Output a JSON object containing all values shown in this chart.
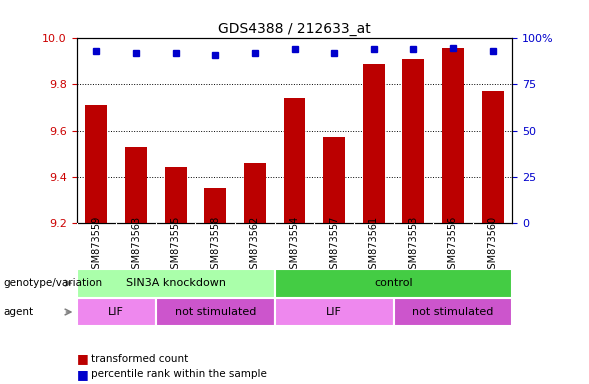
{
  "title": "GDS4388 / 212633_at",
  "samples": [
    "GSM873559",
    "GSM873563",
    "GSM873555",
    "GSM873558",
    "GSM873562",
    "GSM873554",
    "GSM873557",
    "GSM873561",
    "GSM873553",
    "GSM873556",
    "GSM873560"
  ],
  "transformed_counts": [
    9.71,
    9.53,
    9.44,
    9.35,
    9.46,
    9.74,
    9.57,
    9.89,
    9.91,
    9.96,
    9.77
  ],
  "percentile_ranks": [
    93,
    92,
    92,
    91,
    92,
    94,
    92,
    94,
    94,
    95,
    93
  ],
  "bar_color": "#bb0000",
  "dot_color": "#0000cc",
  "ylim_left": [
    9.2,
    10.0
  ],
  "ylim_right": [
    0,
    100
  ],
  "yticks_left": [
    9.2,
    9.4,
    9.6,
    9.8,
    10.0
  ],
  "yticks_right": [
    0,
    25,
    50,
    75,
    100
  ],
  "ytick_labels_right": [
    "0",
    "25",
    "50",
    "75",
    "100%"
  ],
  "groups": [
    {
      "label": "SIN3A knockdown",
      "start": 0,
      "end": 4,
      "color": "#aaffaa"
    },
    {
      "label": "control",
      "start": 5,
      "end": 10,
      "color": "#44cc44"
    }
  ],
  "agents": [
    {
      "label": "LIF",
      "start": 0,
      "end": 1,
      "color": "#ee88ee"
    },
    {
      "label": "not stimulated",
      "start": 2,
      "end": 4,
      "color": "#cc55cc"
    },
    {
      "label": "LIF",
      "start": 5,
      "end": 7,
      "color": "#ee88ee"
    },
    {
      "label": "not stimulated",
      "start": 8,
      "end": 10,
      "color": "#cc55cc"
    }
  ],
  "legend_items": [
    {
      "label": "transformed count",
      "color": "#bb0000"
    },
    {
      "label": "percentile rank within the sample",
      "color": "#0000cc"
    }
  ],
  "grid_linestyle": "dotted"
}
